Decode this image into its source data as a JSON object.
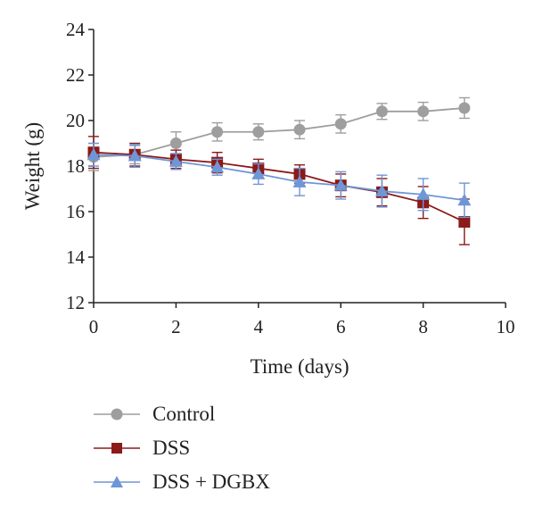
{
  "chart_data": {
    "type": "line",
    "xlabel": "Time (days)",
    "ylabel": "Weight (g)",
    "xlim": [
      0,
      10
    ],
    "ylim": [
      12,
      24
    ],
    "xticks": [
      0,
      2,
      4,
      6,
      8,
      10
    ],
    "yticks": [
      12,
      14,
      16,
      18,
      20,
      22,
      24
    ],
    "grid": false,
    "legend_position": "bottom",
    "x": [
      0,
      1,
      2,
      3,
      4,
      5,
      6,
      7,
      8,
      9
    ],
    "series": [
      {
        "name": "Control",
        "color": "#9e9e9e",
        "marker": "circle",
        "values": [
          18.4,
          18.5,
          19.0,
          19.5,
          19.5,
          19.6,
          19.85,
          20.4,
          20.4,
          20.55
        ],
        "errors": [
          0.6,
          0.4,
          0.5,
          0.4,
          0.35,
          0.4,
          0.4,
          0.35,
          0.4,
          0.45
        ]
      },
      {
        "name": "DSS",
        "color": "#8b1a1a",
        "marker": "square",
        "values": [
          18.6,
          18.5,
          18.3,
          18.15,
          17.9,
          17.65,
          17.15,
          16.85,
          16.4,
          15.55
        ],
        "errors": [
          0.7,
          0.5,
          0.4,
          0.45,
          0.4,
          0.4,
          0.5,
          0.6,
          0.7,
          1.0
        ]
      },
      {
        "name": "DSS + DGBX",
        "color": "#6f96d6",
        "marker": "triangle",
        "values": [
          18.5,
          18.45,
          18.2,
          17.95,
          17.65,
          17.3,
          17.15,
          16.9,
          16.75,
          16.5
        ],
        "errors": [
          0.5,
          0.5,
          0.35,
          0.35,
          0.45,
          0.6,
          0.6,
          0.7,
          0.7,
          0.75
        ]
      }
    ]
  }
}
